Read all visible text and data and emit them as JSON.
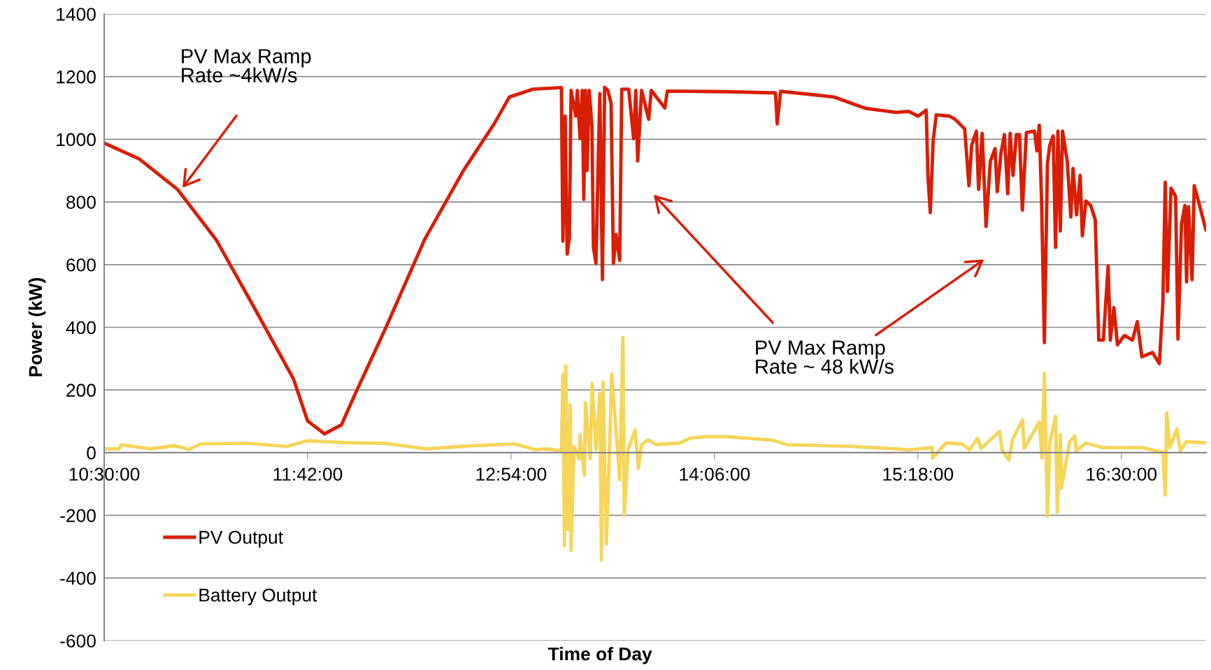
{
  "chart_data": {
    "type": "line",
    "xlabel": "Time of Day",
    "ylabel": "Power (kW)",
    "xlim": [
      10.5,
      17.0
    ],
    "xticks": [
      {
        "value": 10.5,
        "label": "10:30:00"
      },
      {
        "value": 11.7,
        "label": "11:42:00"
      },
      {
        "value": 12.9,
        "label": "12:54:00"
      },
      {
        "value": 14.1,
        "label": "14:06:00"
      },
      {
        "value": 15.3,
        "label": "15:18:00"
      },
      {
        "value": 16.5,
        "label": "16:30:00"
      }
    ],
    "ylim": [
      -600,
      1400
    ],
    "yticks": [
      -600,
      -400,
      -200,
      0,
      200,
      400,
      600,
      800,
      1000,
      1200,
      1400
    ],
    "grid": "y",
    "legend": "bottom left",
    "marker": "none",
    "line_style": "solid",
    "annotations": [
      "PV Max Ramp\nRate ~4kW/s",
      "PV Max Ramp\nRate ~ 48 kW/s"
    ],
    "series": [
      {
        "name": "PV Output",
        "color": "#d81e05",
        "x": [
          10.5,
          10.705,
          10.933,
          11.16,
          11.39,
          11.616,
          11.7,
          11.8,
          11.9,
          11.98,
          12.16,
          12.39,
          12.62,
          12.8,
          12.89,
          13.03,
          13.197,
          13.206,
          13.219,
          13.231,
          13.244,
          13.254,
          13.282,
          13.291,
          13.307,
          13.32,
          13.329,
          13.339,
          13.348,
          13.361,
          13.377,
          13.386,
          13.401,
          13.415,
          13.424,
          13.439,
          13.452,
          13.471,
          13.49,
          13.504,
          13.519,
          13.541,
          13.553,
          13.594,
          13.623,
          13.636,
          13.647,
          13.67,
          13.712,
          13.727,
          13.807,
          13.822,
          14.174,
          14.46,
          14.47,
          14.49,
          14.67,
          14.805,
          14.99,
          15.17,
          15.246,
          15.301,
          15.349,
          15.359,
          15.373,
          15.39,
          15.408,
          15.487,
          15.521,
          15.576,
          15.601,
          15.617,
          15.645,
          15.658,
          15.679,
          15.702,
          15.727,
          15.755,
          15.768,
          15.789,
          15.81,
          15.83,
          15.844,
          15.861,
          15.881,
          15.899,
          15.916,
          15.94,
          15.988,
          16.002,
          16.016,
          16.03,
          16.046,
          16.064,
          16.078,
          16.098,
          16.112,
          16.126,
          16.14,
          16.153,
          16.181,
          16.202,
          16.215,
          16.236,
          16.257,
          16.27,
          16.291,
          16.319,
          16.346,
          16.367,
          16.394,
          16.422,
          16.435,
          16.456,
          16.477,
          16.518,
          16.566,
          16.594,
          16.621,
          16.683,
          16.724,
          16.745,
          16.759,
          16.772,
          16.793,
          16.82,
          16.834,
          16.855,
          16.875,
          16.885,
          16.896,
          16.917,
          16.93,
          16.958,
          16.999
        ],
        "values": [
          988,
          938,
          840,
          680,
          458,
          236,
          101,
          60,
          89,
          187,
          397,
          680,
          901,
          1049,
          1135,
          1160,
          1165,
          675,
          1074,
          634,
          685,
          1156,
          1074,
          1156,
          1002,
          1156,
          808,
          1156,
          900,
          1156,
          1043,
          655,
          604,
          951,
          1146,
          552,
          1166,
          1156,
          1115,
          604,
          696,
          614,
          1160,
          1160,
          1002,
          1156,
          931,
          1156,
          1064,
          1156,
          1100,
          1154,
          1152,
          1148,
          1049,
          1153,
          1143,
          1135,
          1099,
          1086,
          1089,
          1074,
          1093,
          885,
          766,
          996,
          1078,
          1074,
          1063,
          1033,
          852,
          981,
          1026,
          840,
          1019,
          722,
          930,
          970,
          833,
          952,
          1015,
          826,
          1019,
          885,
          1015,
          1015,
          774,
          1022,
          1026,
          963,
          1045,
          789,
          351,
          922,
          981,
          1011,
          655,
          1026,
          707,
          1026,
          930,
          752,
          907,
          759,
          885,
          692,
          803,
          789,
          744,
          359,
          359,
          596,
          359,
          463,
          344,
          374,
          359,
          418,
          306,
          320,
          284,
          478,
          863,
          514,
          844,
          818,
          362,
          729,
          789,
          545,
          785,
          552,
          852,
          796,
          711
        ]
      },
      {
        "name": "Battery Output",
        "color": "#f5d55a",
        "x": [
          10.504,
          10.587,
          10.6,
          10.77,
          10.917,
          11.0,
          11.07,
          11.33,
          11.58,
          11.7,
          11.91,
          12.15,
          12.4,
          12.67,
          12.92,
          13.04,
          13.12,
          13.197,
          13.206,
          13.215,
          13.223,
          13.235,
          13.25,
          13.254,
          13.272,
          13.301,
          13.307,
          13.333,
          13.339,
          13.367,
          13.378,
          13.401,
          13.424,
          13.433,
          13.443,
          13.462,
          13.481,
          13.494,
          13.541,
          13.56,
          13.568,
          13.591,
          13.632,
          13.651,
          13.67,
          13.708,
          13.755,
          13.897,
          13.954,
          14.049,
          14.174,
          14.44,
          14.53,
          14.9,
          15.17,
          15.246,
          15.384,
          15.386,
          15.466,
          15.562,
          15.604,
          15.652,
          15.672,
          15.782,
          15.796,
          15.837,
          15.858,
          15.917,
          15.927,
          16.016,
          16.032,
          16.046,
          16.064,
          16.078,
          16.112,
          16.122,
          16.14,
          16.147,
          16.195,
          16.225,
          16.233,
          16.291,
          16.387,
          16.621,
          16.745,
          16.759,
          16.768,
          16.786,
          16.827,
          16.848,
          16.882,
          16.999
        ],
        "values": [
          12,
          12,
          25,
          12,
          22,
          10,
          28,
          30,
          20,
          38,
          32,
          30,
          12,
          22,
          28,
          10,
          12,
          5,
          250,
          -297,
          276,
          -246,
          153,
          -312,
          20,
          -20,
          56,
          -72,
          159,
          -20,
          220,
          10,
          189,
          -343,
          225,
          -292,
          10,
          251,
          -87,
          368,
          -200,
          10,
          72,
          -51,
          26,
          41,
          26,
          31,
          46,
          51,
          51,
          40,
          25,
          20,
          12,
          9,
          16,
          -17,
          31,
          27,
          9,
          46,
          13,
          68,
          9,
          -24,
          42,
          105,
          13,
          98,
          -17,
          253,
          -202,
          31,
          116,
          -191,
          57,
          -113,
          35,
          53,
          5,
          31,
          16,
          16,
          1,
          -136,
          127,
          16,
          76,
          5,
          35,
          31
        ]
      }
    ]
  }
}
